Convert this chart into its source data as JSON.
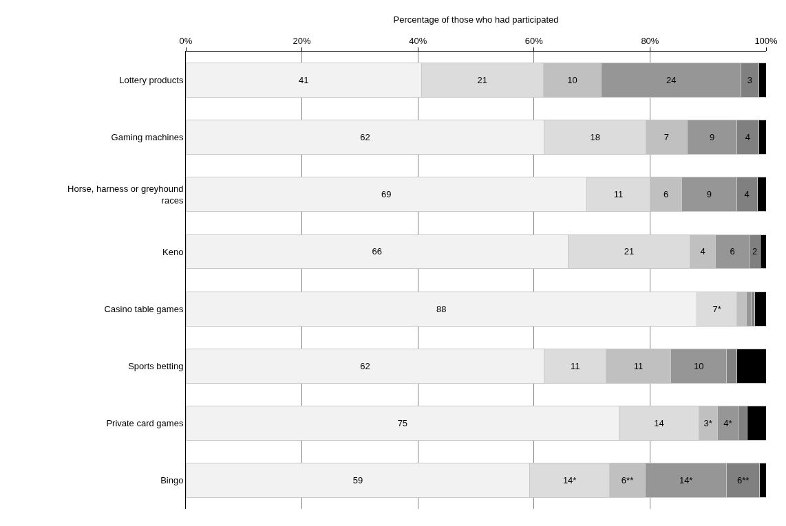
{
  "chart_data": {
    "type": "bar",
    "orientation": "horizontal",
    "stacked": true,
    "xlabel": "Percentage of those who had participated",
    "categories": [
      "Lottery products",
      "Gaming machines",
      "Horse, harness or greyhound races",
      "Keno",
      "Casino table games",
      "Sports betting",
      "Private card games",
      "Bingo"
    ],
    "xlim": [
      0,
      100
    ],
    "xticks": [
      {
        "value": 0,
        "label": "0%"
      },
      {
        "value": 20,
        "label": "20%"
      },
      {
        "value": 40,
        "label": "40%"
      },
      {
        "value": 60,
        "label": "60%"
      },
      {
        "value": 80,
        "label": "80%"
      },
      {
        "value": 100,
        "label": "100%"
      }
    ],
    "grid": "x",
    "series": [
      {
        "color": "#f2f2f2",
        "values": [
          40.6,
          61.8,
          69.1,
          65.9,
          88.1,
          61.8,
          74.7,
          59.3
        ],
        "value_labels": [
          "41",
          "62",
          "69",
          "66",
          "88",
          "62",
          "75",
          "59"
        ]
      },
      {
        "color": "#dcdcdc",
        "values": [
          21.0,
          17.5,
          10.9,
          21.0,
          6.9,
          10.6,
          13.7,
          13.7
        ],
        "value_labels": [
          "21",
          "18",
          "11",
          "21",
          "7*",
          "11",
          "14",
          "14*"
        ]
      },
      {
        "color": "#c0c0c0",
        "values": [
          10.0,
          7.1,
          5.5,
          4.4,
          1.6,
          11.2,
          3.2,
          6.2
        ],
        "value_labels": [
          "10",
          "7",
          "6",
          "4",
          null,
          "11",
          "3*",
          "6**"
        ]
      },
      {
        "color": "#969696",
        "values": [
          24.1,
          8.6,
          9.4,
          5.8,
          0.8,
          9.6,
          3.6,
          14.0
        ],
        "value_labels": [
          "24",
          "9",
          "9",
          "6",
          null,
          "10",
          "4*",
          "14*"
        ]
      },
      {
        "color": "#808080",
        "values": [
          3.0,
          3.7,
          3.6,
          1.9,
          0.7,
          1.7,
          1.5,
          5.7
        ],
        "value_labels": [
          "3",
          "4",
          "4",
          "2",
          null,
          null,
          null,
          "6**"
        ]
      },
      {
        "color": "#000000",
        "values": [
          1.3,
          1.3,
          1.5,
          1.0,
          1.9,
          5.1,
          3.3,
          1.1
        ],
        "value_labels": [
          null,
          null,
          null,
          null,
          null,
          null,
          null,
          null
        ]
      }
    ]
  }
}
